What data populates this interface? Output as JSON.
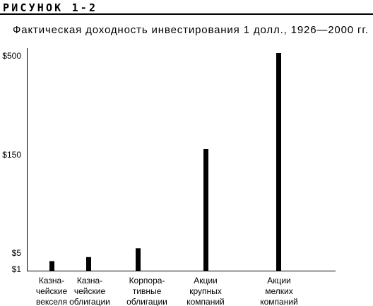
{
  "figure_label": "РИСУНОК 1-2",
  "chart_data": {
    "type": "bar",
    "title": "Фактическая доходность инвестирования 1 долл., 1926—2000 гг.",
    "categories": [
      [
        "Казна-",
        "чейские",
        "векселя"
      ],
      [
        "Казна-",
        "чейские",
        "облигации"
      ],
      [
        "Корпора-",
        "тивные",
        "облигации"
      ],
      [
        "Акции",
        "крупных",
        "компаний"
      ],
      [
        "Акции",
        "мелких",
        "компаний"
      ]
    ],
    "values": [
      3,
      4,
      12,
      170,
      510
    ],
    "yticks": [
      1,
      5,
      150,
      500
    ],
    "ytick_labels": [
      "$1",
      "$5",
      "$150",
      "$500"
    ],
    "ylim": [
      1,
      530
    ],
    "grid": false,
    "bar_color": "#000000"
  }
}
